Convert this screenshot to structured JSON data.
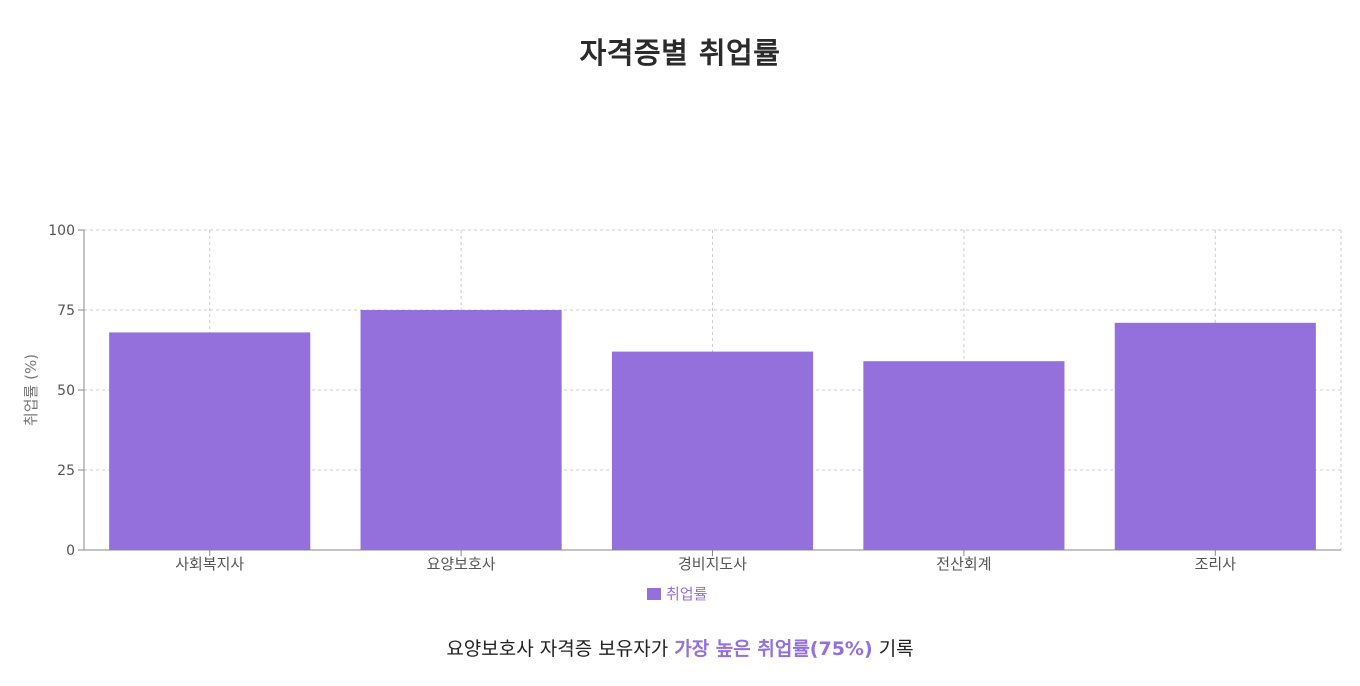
{
  "chart_data": {
    "type": "bar",
    "title": "자격증별 취업률",
    "categories": [
      "사회복지사",
      "요양보호사",
      "경비지도사",
      "전산회계",
      "조리사"
    ],
    "series": [
      {
        "name": "취업률",
        "values": [
          68,
          75,
          62,
          59,
          71
        ]
      }
    ],
    "xlabel": "",
    "ylabel": "취업률 (%)",
    "ylim": [
      0,
      100
    ],
    "yticks": [
      0,
      25,
      50,
      75,
      100
    ],
    "grid": true,
    "legend": "bottom-center"
  },
  "colors": {
    "bar": "#9370DB",
    "axis": "#888888",
    "grid": "#cccccc",
    "tick_text": "#555555",
    "highlight": "#9370DB"
  },
  "summary": {
    "prefix": "요양보호사 자격증 보유자가 ",
    "highlight": "가장 높은 취업률(75%)",
    "suffix": " 기록"
  }
}
